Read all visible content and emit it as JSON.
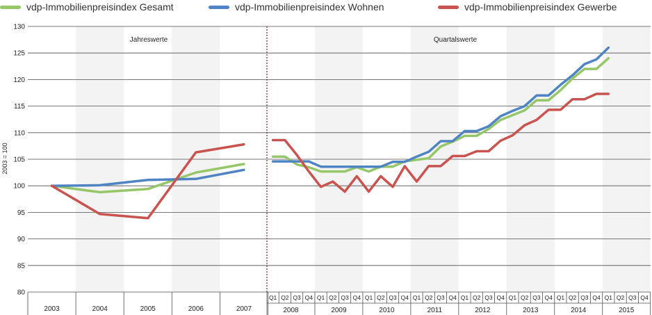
{
  "chart_data": {
    "type": "line",
    "ylabel": "2003 = 100",
    "ylim": [
      80,
      130
    ],
    "y_ticks": [
      80,
      85,
      90,
      95,
      100,
      105,
      110,
      115,
      120,
      125,
      130
    ],
    "section_labels": [
      "Jahreswerte",
      "Quartalswerte"
    ],
    "years_annual": [
      "2003",
      "2004",
      "2005",
      "2006",
      "2007"
    ],
    "years_quarterly": [
      "2008",
      "2009",
      "2010",
      "2011",
      "2012",
      "2013",
      "2014",
      "2015"
    ],
    "quarter_labels": [
      "Q1",
      "Q2",
      "Q3",
      "Q4"
    ],
    "series": [
      {
        "name": "vdp-Immobilienpreisindex Gesamt",
        "color": "#95c769",
        "annual": [
          100,
          98.8,
          99.4,
          102.5,
          104.1
        ],
        "quarterly": [
          105.5,
          105.5,
          104.0,
          103.5,
          102.7,
          102.7,
          102.7,
          103.5,
          102.7,
          103.6,
          103.6,
          104.6,
          104.9,
          105.2,
          107.4,
          108.3,
          109.4,
          109.4,
          110.7,
          112.4,
          113.3,
          114.2,
          116.1,
          116.1,
          118.0,
          120.2,
          122.0,
          122.0,
          124.0
        ]
      },
      {
        "name": "vdp-Immobilienpreisindex Wohnen",
        "color": "#4f84c4",
        "annual": [
          100,
          100.1,
          101.1,
          101.3,
          103.0
        ],
        "quarterly": [
          104.6,
          104.6,
          104.6,
          104.6,
          103.6,
          103.6,
          103.6,
          103.6,
          103.6,
          103.6,
          104.5,
          104.5,
          105.5,
          106.4,
          108.4,
          108.4,
          110.3,
          110.3,
          111.2,
          113.1,
          114.1,
          115.0,
          117.0,
          117.0,
          119.0,
          120.8,
          122.9,
          123.8,
          126.0
        ]
      },
      {
        "name": "vdp-Immobilienpreisindex Gewerbe",
        "color": "#c9534f",
        "annual": [
          100,
          94.7,
          93.9,
          106.3,
          107.8
        ],
        "quarterly": [
          108.6,
          108.6,
          105.8,
          102.7,
          99.8,
          100.8,
          98.9,
          101.8,
          98.9,
          101.8,
          99.8,
          103.7,
          100.8,
          103.7,
          103.7,
          105.6,
          105.6,
          106.5,
          106.5,
          108.5,
          109.5,
          111.4,
          112.4,
          114.3,
          114.3,
          116.3,
          116.3,
          117.3,
          117.3
        ]
      }
    ],
    "grid": true,
    "legend_position": "top"
  }
}
